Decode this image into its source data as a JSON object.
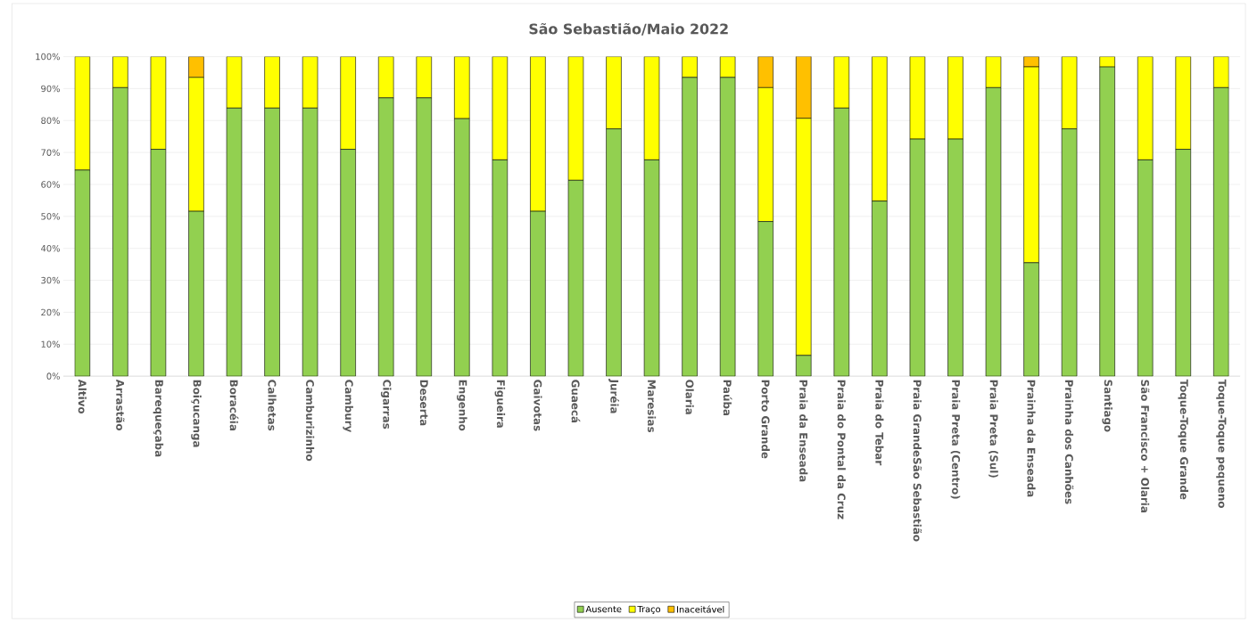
{
  "chart_data": {
    "type": "bar",
    "title": "São Sebastião/Maio 2022",
    "stacked": true,
    "grid": "y",
    "legend": "bottom",
    "categories": [
      "Altivo",
      "Arrastão",
      "Barequeçaba",
      "Boiçucanga",
      "Boracéia",
      "Calhetas",
      "Camburizinho",
      "Cambury",
      "Cigarras",
      "Deserta",
      "Engenho",
      "Figueira",
      "Gaivotas",
      "Guaecá",
      "Juréia",
      "Maresias",
      "Olaria",
      "Paúba",
      "Porto Grande",
      "Praia da Enseada",
      "Praia do Pontal da Cruz",
      "Praia do Tebar",
      "Praia GrandeSão Sebastião",
      "Praia Preta (Centro)",
      "Praia Preta (Sul)",
      "Prainha da Enseada",
      "Prainha dos Canhões",
      "Santiago",
      "São Francisco + Olaria",
      "Toque-Toque Grande",
      "Toque-Toque pequeno"
    ],
    "series": [
      {
        "name": "Ausente",
        "color": "#92d050",
        "values": [
          64.5,
          90.3,
          71.0,
          51.6,
          83.9,
          83.9,
          83.9,
          71.0,
          87.1,
          87.1,
          80.6,
          67.7,
          51.6,
          61.3,
          77.4,
          67.7,
          93.5,
          93.5,
          48.4,
          6.5,
          83.9,
          54.8,
          74.2,
          74.2,
          90.3,
          35.5,
          77.4,
          96.8,
          67.7,
          71.0,
          90.3
        ]
      },
      {
        "name": "Traço",
        "color": "#ffff00",
        "values": [
          35.5,
          9.7,
          29.0,
          41.9,
          16.1,
          16.1,
          16.1,
          29.0,
          12.9,
          12.9,
          19.4,
          32.3,
          48.4,
          38.7,
          22.6,
          32.3,
          6.5,
          6.5,
          41.9,
          74.2,
          16.1,
          45.2,
          25.8,
          25.8,
          9.7,
          61.3,
          22.6,
          3.2,
          32.3,
          29.0,
          9.7
        ]
      },
      {
        "name": "Inaceitável",
        "color": "#ffc000",
        "values": [
          0,
          0,
          0,
          6.5,
          0,
          0,
          0,
          0,
          0,
          0,
          0,
          0,
          0,
          0,
          0,
          0,
          0,
          0,
          9.7,
          19.4,
          0,
          0,
          0,
          0,
          0,
          3.2,
          0,
          0,
          0,
          0,
          0
        ]
      }
    ],
    "ylim": [
      0,
      100
    ],
    "yticks": [
      {
        "value": 0,
        "label": "0%"
      },
      {
        "value": 10,
        "label": "10%"
      },
      {
        "value": 20,
        "label": "20%"
      },
      {
        "value": 30,
        "label": "30%"
      },
      {
        "value": 40,
        "label": "40%"
      },
      {
        "value": 50,
        "label": "50%"
      },
      {
        "value": 60,
        "label": "60%"
      },
      {
        "value": 70,
        "label": "70%"
      },
      {
        "value": 80,
        "label": "80%"
      },
      {
        "value": 90,
        "label": "90%"
      },
      {
        "value": 100,
        "label": "100%"
      }
    ]
  }
}
